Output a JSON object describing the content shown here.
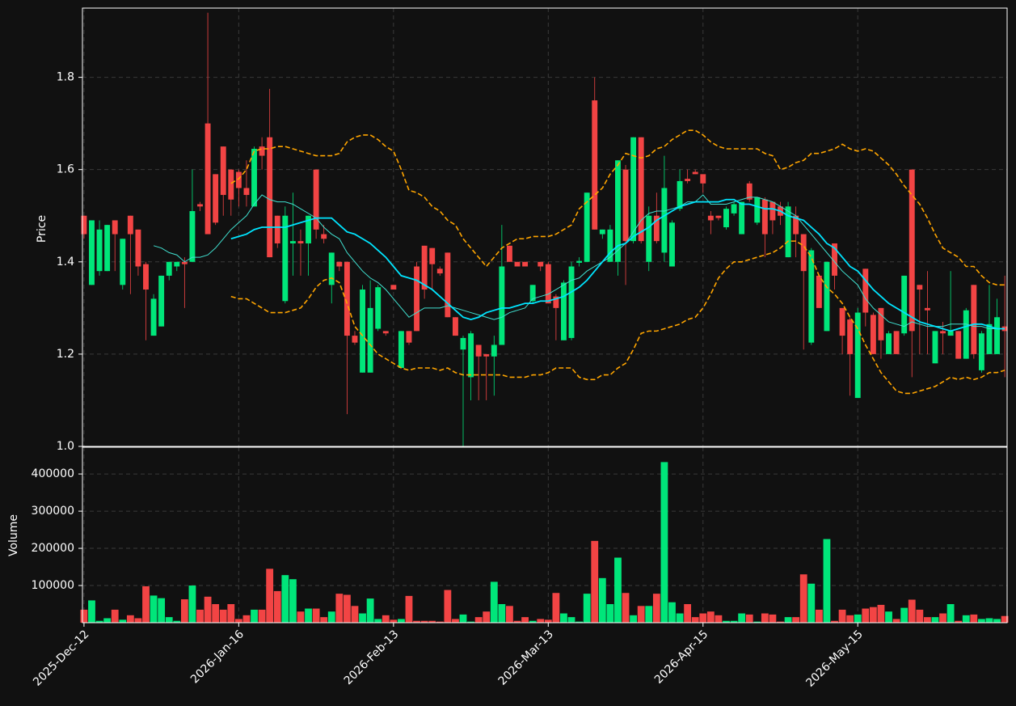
{
  "chart_data": {
    "type": "candlestick",
    "ylabel": "Price",
    "volume_label": "Volume",
    "up_color": "#00e67a",
    "down_color": "#f24444",
    "grid": true,
    "ylim": [
      1.0,
      1.95
    ],
    "yticks": [
      {
        "value": 1,
        "label": "1.0"
      },
      1.2,
      1.4,
      1.6,
      1.8
    ],
    "volume_ylim": [
      0,
      472000
    ],
    "volume_yticks": [
      100000,
      200000,
      300000,
      400000
    ],
    "categories": [
      "2025-Dec-12",
      null,
      null,
      null,
      null,
      null,
      null,
      null,
      null,
      null,
      null,
      null,
      null,
      null,
      null,
      null,
      null,
      null,
      null,
      null,
      "2026-Jan-16",
      null,
      null,
      null,
      null,
      null,
      null,
      null,
      null,
      null,
      null,
      null,
      null,
      null,
      null,
      null,
      null,
      null,
      null,
      null,
      "2026-Feb-13",
      null,
      null,
      null,
      null,
      null,
      null,
      null,
      null,
      null,
      null,
      null,
      null,
      null,
      null,
      null,
      null,
      null,
      null,
      null,
      "2026-Mar-13",
      null,
      null,
      null,
      null,
      null,
      null,
      null,
      null,
      null,
      null,
      null,
      null,
      null,
      null,
      null,
      null,
      null,
      null,
      null,
      "2026-Apr-15",
      null,
      null,
      null,
      null,
      null,
      null,
      null,
      null,
      null,
      null,
      null,
      null,
      null,
      null,
      null,
      null,
      null,
      null,
      null,
      "2026-May-15",
      null,
      null,
      null,
      null,
      null,
      null,
      null,
      null,
      null,
      null,
      null,
      null,
      null,
      null,
      null,
      null,
      null,
      null,
      null
    ],
    "open": [
      1.5,
      1.35,
      1.38,
      1.38,
      1.49,
      1.35,
      1.5,
      1.47,
      1.395,
      1.24,
      1.26,
      1.37,
      1.39,
      1.4,
      1.4,
      1.525,
      1.7,
      1.59,
      1.65,
      1.6,
      1.595,
      1.56,
      1.52,
      1.65,
      1.67,
      1.5,
      1.315,
      1.44,
      1.445,
      1.44,
      1.6,
      1.46,
      1.35,
      1.4,
      1.4,
      1.24,
      1.16,
      1.16,
      1.255,
      1.25,
      1.35,
      1.17,
      1.25,
      1.39,
      1.435,
      1.43,
      1.385,
      1.42,
      1.28,
      1.21,
      1.15,
      1.22,
      1.2,
      1.195,
      1.22,
      1.435,
      1.4,
      1.4,
      1.315,
      1.4,
      1.395,
      1.325,
      1.23,
      1.235,
      1.398,
      1.4,
      1.75,
      1.46,
      1.4,
      1.4,
      1.6,
      1.445,
      1.67,
      1.4,
      1.5,
      1.42,
      1.39,
      1.515,
      1.58,
      1.595,
      1.59,
      1.5,
      1.5,
      1.475,
      1.505,
      1.46,
      1.57,
      1.485,
      1.535,
      1.53,
      1.52,
      1.41,
      1.5,
      1.46,
      1.225,
      1.37,
      1.25,
      1.44,
      1.3,
      1.275,
      1.105,
      1.385,
      1.285,
      1.3,
      1.2,
      1.25,
      1.245,
      1.6,
      1.35,
      1.3,
      1.18,
      1.25,
      1.24,
      1.25,
      1.19,
      1.35,
      1.165,
      1.2,
      1.2,
      1.26
    ],
    "high": [
      1.5,
      1.49,
      1.49,
      1.48,
      1.49,
      1.45,
      1.5,
      1.47,
      1.4,
      1.33,
      1.37,
      1.4,
      1.4,
      1.41,
      1.6,
      1.53,
      1.94,
      1.59,
      1.65,
      1.6,
      1.6,
      1.62,
      1.65,
      1.67,
      1.775,
      1.5,
      1.52,
      1.55,
      1.47,
      1.5,
      1.6,
      1.48,
      1.42,
      1.4,
      1.4,
      1.25,
      1.35,
      1.36,
      1.35,
      1.25,
      1.35,
      1.25,
      1.25,
      1.4,
      1.435,
      1.43,
      1.39,
      1.42,
      1.28,
      1.24,
      1.25,
      1.22,
      1.2,
      1.24,
      1.48,
      1.435,
      1.4,
      1.4,
      1.35,
      1.4,
      1.4,
      1.33,
      1.36,
      1.4,
      1.41,
      1.55,
      1.8,
      1.47,
      1.48,
      1.62,
      1.61,
      1.67,
      1.67,
      1.52,
      1.55,
      1.63,
      1.49,
      1.6,
      1.6,
      1.6,
      1.59,
      1.51,
      1.5,
      1.52,
      1.53,
      1.53,
      1.575,
      1.54,
      1.54,
      1.53,
      1.53,
      1.53,
      1.52,
      1.46,
      1.43,
      1.37,
      1.4,
      1.44,
      1.3,
      1.28,
      1.3,
      1.385,
      1.29,
      1.3,
      1.25,
      1.25,
      1.37,
      1.6,
      1.35,
      1.38,
      1.25,
      1.27,
      1.38,
      1.25,
      1.3,
      1.35,
      1.25,
      1.35,
      1.32,
      1.37
    ],
    "low": [
      1.45,
      1.35,
      1.37,
      1.38,
      1.38,
      1.34,
      1.33,
      1.37,
      1.23,
      1.24,
      1.26,
      1.36,
      1.38,
      1.3,
      1.4,
      1.51,
      1.46,
      1.48,
      1.5,
      1.5,
      1.52,
      1.52,
      1.52,
      1.6,
      1.41,
      1.43,
      1.31,
      1.37,
      1.37,
      1.37,
      1.45,
      1.44,
      1.31,
      1.38,
      1.07,
      1.22,
      1.16,
      1.16,
      1.25,
      1.24,
      1.34,
      1.17,
      1.22,
      1.25,
      1.32,
      1.34,
      1.37,
      1.28,
      1.24,
      1.0,
      1.1,
      1.1,
      1.1,
      1.11,
      1.22,
      1.4,
      1.39,
      1.39,
      1.31,
      1.38,
      1.31,
      1.23,
      1.23,
      1.23,
      1.39,
      1.4,
      1.47,
      1.45,
      1.4,
      1.37,
      1.35,
      1.44,
      1.44,
      1.38,
      1.44,
      1.4,
      1.39,
      1.51,
      1.57,
      1.59,
      1.55,
      1.46,
      1.49,
      1.47,
      1.5,
      1.46,
      1.53,
      1.48,
      1.41,
      1.46,
      1.48,
      1.41,
      1.41,
      1.21,
      1.22,
      1.3,
      1.25,
      1.34,
      1.2,
      1.11,
      1.105,
      1.26,
      1.2,
      1.19,
      1.2,
      1.2,
      1.24,
      1.15,
      1.2,
      1.2,
      1.18,
      1.2,
      1.24,
      1.19,
      1.19,
      1.19,
      1.16,
      1.2,
      1.2,
      1.15
    ],
    "close": [
      1.46,
      1.49,
      1.47,
      1.48,
      1.46,
      1.45,
      1.46,
      1.39,
      1.34,
      1.32,
      1.37,
      1.4,
      1.4,
      1.395,
      1.51,
      1.52,
      1.46,
      1.485,
      1.545,
      1.535,
      1.56,
      1.545,
      1.645,
      1.63,
      1.41,
      1.44,
      1.5,
      1.445,
      1.44,
      1.5,
      1.47,
      1.45,
      1.42,
      1.39,
      1.24,
      1.225,
      1.34,
      1.3,
      1.345,
      1.245,
      1.34,
      1.25,
      1.225,
      1.25,
      1.34,
      1.395,
      1.375,
      1.28,
      1.24,
      1.235,
      1.245,
      1.195,
      1.195,
      1.22,
      1.39,
      1.4,
      1.39,
      1.39,
      1.35,
      1.39,
      1.31,
      1.3,
      1.355,
      1.39,
      1.402,
      1.55,
      1.47,
      1.47,
      1.47,
      1.62,
      1.445,
      1.67,
      1.445,
      1.5,
      1.445,
      1.56,
      1.485,
      1.575,
      1.575,
      1.59,
      1.57,
      1.49,
      1.495,
      1.515,
      1.525,
      1.53,
      1.535,
      1.54,
      1.46,
      1.49,
      1.5,
      1.52,
      1.46,
      1.38,
      1.425,
      1.3,
      1.4,
      1.37,
      1.24,
      1.2,
      1.29,
      1.29,
      1.2,
      1.23,
      1.245,
      1.2,
      1.37,
      1.25,
      1.34,
      1.295,
      1.25,
      1.245,
      1.25,
      1.19,
      1.295,
      1.2,
      1.245,
      1.265,
      1.28,
      1.25
    ],
    "volume": [
      35000,
      60000,
      5000,
      12000,
      35000,
      8000,
      20000,
      12000,
      98000,
      73000,
      66000,
      15000,
      5000,
      63000,
      100000,
      35000,
      70000,
      50000,
      35000,
      50000,
      10000,
      20000,
      35000,
      35000,
      145000,
      85000,
      128000,
      117000,
      30000,
      38000,
      38000,
      15000,
      30000,
      78000,
      75000,
      45000,
      25000,
      65000,
      10000,
      20000,
      8000,
      10000,
      72000,
      5000,
      5000,
      5000,
      3000,
      88000,
      10000,
      22000,
      3000,
      15000,
      30000,
      110000,
      50000,
      45000,
      5000,
      15000,
      5000,
      10000,
      8000,
      80000,
      25000,
      15000,
      3000,
      78000,
      220000,
      120000,
      50000,
      175000,
      80000,
      20000,
      45000,
      45000,
      78000,
      432000,
      55000,
      25000,
      50000,
      15000,
      25000,
      30000,
      20000,
      5000,
      5000,
      25000,
      22000,
      3000,
      25000,
      22000,
      3000,
      15000,
      15000,
      130000,
      105000,
      35000,
      225000,
      5000,
      35000,
      20000,
      22000,
      38000,
      42000,
      48000,
      30000,
      10000,
      40000,
      62000,
      35000,
      15000,
      15000,
      25000,
      50000,
      5000,
      20000,
      22000,
      10000,
      12000,
      10000,
      18000
    ],
    "overlays": [
      {
        "color": "#ffa500",
        "width": 1.6,
        "dash": true,
        "values": [
          null,
          null,
          null,
          null,
          null,
          null,
          null,
          null,
          null,
          null,
          null,
          null,
          null,
          null,
          null,
          null,
          null,
          null,
          null,
          1.57,
          1.58,
          1.6,
          1.64,
          1.645,
          1.645,
          1.65,
          1.65,
          1.645,
          1.64,
          1.635,
          1.63,
          1.63,
          1.63,
          1.635,
          1.66,
          1.67,
          1.675,
          1.675,
          1.665,
          1.65,
          1.64,
          1.6,
          1.555,
          1.55,
          1.54,
          1.52,
          1.51,
          1.49,
          1.48,
          1.45,
          1.43,
          1.41,
          1.39,
          1.41,
          1.43,
          1.44,
          1.45,
          1.45,
          1.455,
          1.455,
          1.455,
          1.46,
          1.47,
          1.48,
          1.515,
          1.53,
          1.545,
          1.56,
          1.59,
          1.61,
          1.635,
          1.63,
          1.625,
          1.63,
          1.645,
          1.65,
          1.665,
          1.675,
          1.685,
          1.685,
          1.675,
          1.66,
          1.65,
          1.645,
          1.645,
          1.645,
          1.645,
          1.645,
          1.635,
          1.63,
          1.6,
          1.605,
          1.615,
          1.62,
          1.635,
          1.635,
          1.64,
          1.645,
          1.655,
          1.645,
          1.64,
          1.645,
          1.64,
          1.625,
          1.61,
          1.59,
          1.565,
          1.545,
          1.525,
          1.495,
          1.46,
          1.43,
          1.42,
          1.41,
          1.39,
          1.39,
          1.37,
          1.355,
          1.35,
          1.35
        ]
      },
      {
        "color": "#ffa500",
        "width": 1.6,
        "dash": true,
        "values": [
          null,
          null,
          null,
          null,
          null,
          null,
          null,
          null,
          null,
          null,
          null,
          null,
          null,
          null,
          null,
          null,
          null,
          null,
          null,
          1.325,
          1.32,
          1.32,
          1.31,
          1.3,
          1.29,
          1.29,
          1.29,
          1.295,
          1.3,
          1.32,
          1.345,
          1.36,
          1.365,
          1.355,
          1.31,
          1.26,
          1.24,
          1.22,
          1.2,
          1.19,
          1.18,
          1.17,
          1.165,
          1.17,
          1.17,
          1.17,
          1.165,
          1.17,
          1.16,
          1.155,
          1.155,
          1.155,
          1.155,
          1.155,
          1.155,
          1.15,
          1.15,
          1.15,
          1.155,
          1.155,
          1.16,
          1.17,
          1.17,
          1.17,
          1.15,
          1.145,
          1.145,
          1.155,
          1.155,
          1.17,
          1.18,
          1.21,
          1.245,
          1.25,
          1.25,
          1.255,
          1.26,
          1.265,
          1.275,
          1.28,
          1.3,
          1.33,
          1.365,
          1.385,
          1.4,
          1.4,
          1.405,
          1.41,
          1.415,
          1.42,
          1.43,
          1.445,
          1.445,
          1.435,
          1.41,
          1.37,
          1.345,
          1.33,
          1.31,
          1.28,
          1.255,
          1.22,
          1.19,
          1.16,
          1.14,
          1.12,
          1.115,
          1.115,
          1.12,
          1.125,
          1.13,
          1.14,
          1.15,
          1.145,
          1.15,
          1.145,
          1.15,
          1.16,
          1.16,
          1.165
        ]
      },
      {
        "color": "#40e0d0",
        "width": 1,
        "dash": false,
        "values": [
          null,
          null,
          null,
          null,
          null,
          null,
          null,
          null,
          null,
          1.435,
          1.43,
          1.42,
          1.415,
          1.4,
          1.41,
          1.41,
          1.415,
          1.43,
          1.45,
          1.47,
          1.485,
          1.5,
          1.525,
          1.545,
          1.535,
          1.53,
          1.53,
          1.525,
          1.515,
          1.505,
          1.495,
          1.475,
          1.46,
          1.45,
          1.42,
          1.4,
          1.38,
          1.365,
          1.355,
          1.34,
          1.32,
          1.3,
          1.28,
          1.29,
          1.3,
          1.3,
          1.3,
          1.305,
          1.3,
          1.295,
          1.29,
          1.285,
          1.28,
          1.275,
          1.28,
          1.29,
          1.295,
          1.3,
          1.32,
          1.325,
          1.33,
          1.34,
          1.35,
          1.36,
          1.365,
          1.38,
          1.39,
          1.4,
          1.41,
          1.425,
          1.44,
          1.465,
          1.49,
          1.505,
          1.51,
          1.51,
          1.515,
          1.52,
          1.53,
          1.53,
          1.545,
          1.525,
          1.525,
          1.525,
          1.53,
          1.535,
          1.54,
          1.54,
          1.535,
          1.53,
          1.52,
          1.51,
          1.5,
          1.48,
          1.46,
          1.44,
          1.42,
          1.4,
          1.38,
          1.365,
          1.35,
          1.32,
          1.3,
          1.285,
          1.27,
          1.265,
          1.26,
          1.27,
          1.265,
          1.26,
          1.26,
          1.26,
          1.265,
          1.265,
          1.265,
          1.26,
          1.26,
          1.255,
          1.255,
          1.255
        ]
      },
      {
        "color": "#00e5ff",
        "width": 1.8,
        "dash": false,
        "values": [
          null,
          null,
          null,
          null,
          null,
          null,
          null,
          null,
          null,
          null,
          null,
          null,
          null,
          null,
          null,
          null,
          null,
          null,
          null,
          1.45,
          1.455,
          1.46,
          1.47,
          1.475,
          1.475,
          1.475,
          1.475,
          1.48,
          1.485,
          1.49,
          1.495,
          1.495,
          1.495,
          1.48,
          1.465,
          1.46,
          1.45,
          1.44,
          1.425,
          1.41,
          1.39,
          1.37,
          1.365,
          1.36,
          1.35,
          1.34,
          1.325,
          1.31,
          1.295,
          1.28,
          1.275,
          1.28,
          1.29,
          1.295,
          1.3,
          1.3,
          1.305,
          1.31,
          1.31,
          1.315,
          1.315,
          1.32,
          1.325,
          1.335,
          1.345,
          1.36,
          1.38,
          1.4,
          1.42,
          1.435,
          1.44,
          1.455,
          1.465,
          1.475,
          1.49,
          1.5,
          1.51,
          1.52,
          1.525,
          1.53,
          1.53,
          1.53,
          1.53,
          1.535,
          1.535,
          1.525,
          1.525,
          1.52,
          1.515,
          1.515,
          1.51,
          1.5,
          1.495,
          1.49,
          1.475,
          1.46,
          1.44,
          1.43,
          1.41,
          1.39,
          1.38,
          1.36,
          1.34,
          1.325,
          1.31,
          1.3,
          1.29,
          1.28,
          1.27,
          1.265,
          1.26,
          1.255,
          1.25,
          1.255,
          1.26,
          1.265,
          1.265,
          1.26,
          1.255,
          1.255
        ]
      }
    ]
  }
}
